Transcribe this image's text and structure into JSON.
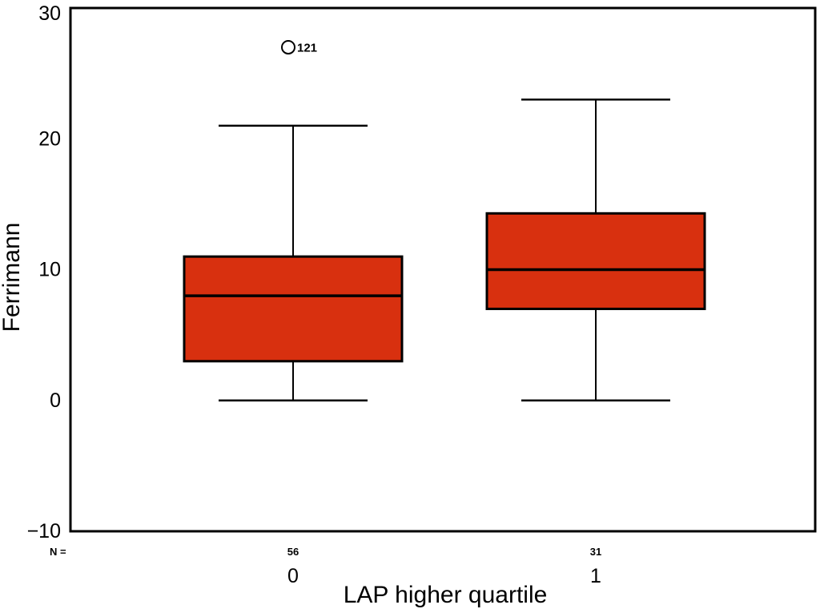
{
  "figure": {
    "kind": "statistical-boxplot"
  },
  "chart_data": {
    "type": "boxplot",
    "title": "",
    "xlabel": "LAP higher quartile",
    "ylabel": "Ferrimann",
    "ylim": [
      -10,
      30
    ],
    "yticks": [
      30,
      20,
      10,
      0,
      -10
    ],
    "grid": false,
    "legend": "none",
    "n_row_label": "N =",
    "box_fill_color": "#d8300f",
    "box_border_color": "#000000",
    "groups": [
      {
        "category": "0",
        "n": 56,
        "whisker_low": 0,
        "q1": 3,
        "median": 8,
        "q3": 11,
        "whisker_high": 21,
        "outliers": [
          {
            "value": 27,
            "label": "121"
          }
        ]
      },
      {
        "category": "1",
        "n": 31,
        "whisker_low": 0,
        "q1": 7,
        "median": 10,
        "q3": 14.3,
        "whisker_high": 23,
        "outliers": []
      }
    ]
  }
}
